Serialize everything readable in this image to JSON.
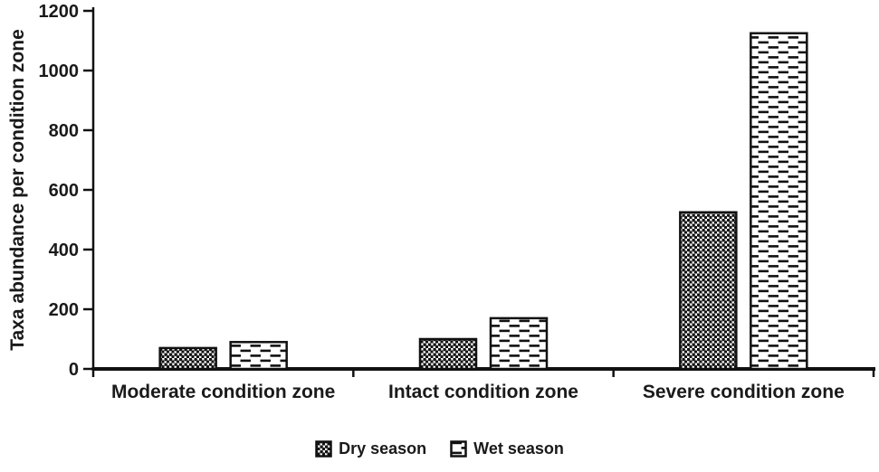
{
  "chart_data": {
    "type": "bar",
    "categories": [
      "Moderate condition zone",
      "Intact condition zone",
      "Severe condition zone"
    ],
    "series": [
      {
        "name": "Dry season",
        "pattern": "dots",
        "values": [
          70,
          100,
          525
        ]
      },
      {
        "name": "Wet season",
        "pattern": "dashes",
        "values": [
          90,
          170,
          1125
        ]
      }
    ],
    "ylabel": "Taxa abundance per condition zone",
    "ylim": [
      0,
      1200
    ],
    "yticks": [
      0,
      200,
      400,
      600,
      800,
      1000,
      1200
    ],
    "grid": false,
    "legend_position": "bottom",
    "colors": {
      "ink": "#111111",
      "text": "#1a1a1a",
      "bar_background": "#ffffff"
    }
  }
}
